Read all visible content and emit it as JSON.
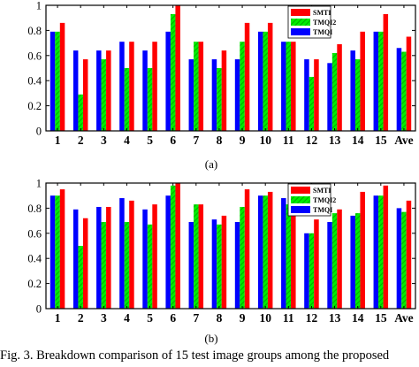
{
  "colors": {
    "series": [
      "#ff0000",
      "#00ee00",
      "#0000ff"
    ],
    "hatch": "#009900",
    "axis": "#000000"
  },
  "caption": "Fig. 3.   Breakdown comparison of 15 test image groups among the proposed",
  "chart_data": [
    {
      "type": "bar",
      "panel_label": "(a)",
      "categories": [
        "1",
        "2",
        "3",
        "4",
        "5",
        "6",
        "7",
        "8",
        "9",
        "10",
        "11",
        "12",
        "13",
        "14",
        "15",
        "Ave"
      ],
      "ylim": [
        0,
        1
      ],
      "yticks": [
        0,
        0.2,
        0.4,
        0.6,
        0.8,
        1
      ],
      "ytick_labels": [
        "0",
        "0.2",
        "0.4",
        "0.6",
        "0.8",
        "1"
      ],
      "grid": false,
      "legend_position": "top-right",
      "bar_order": [
        "TMQI",
        "TMQI2",
        "SMTI"
      ],
      "series": [
        {
          "name": "SMTI",
          "values": [
            0.86,
            0.57,
            0.64,
            0.71,
            0.71,
            1.0,
            0.71,
            0.64,
            0.86,
            0.86,
            0.71,
            0.57,
            0.69,
            0.79,
            0.93,
            0.75
          ]
        },
        {
          "name": "TMQI2",
          "values": [
            0.79,
            0.29,
            0.57,
            0.5,
            0.5,
            0.93,
            0.71,
            0.5,
            0.71,
            0.79,
            0.71,
            0.43,
            0.62,
            0.57,
            0.79,
            0.63
          ]
        },
        {
          "name": "TMQI",
          "values": [
            0.79,
            0.64,
            0.64,
            0.71,
            0.64,
            0.79,
            0.57,
            0.57,
            0.57,
            0.79,
            0.71,
            0.57,
            0.54,
            0.64,
            0.79,
            0.66
          ]
        }
      ]
    },
    {
      "type": "bar",
      "panel_label": "(b)",
      "categories": [
        "1",
        "2",
        "3",
        "4",
        "5",
        "6",
        "7",
        "8",
        "9",
        "10",
        "11",
        "12",
        "13",
        "14",
        "15",
        "Ave"
      ],
      "ylim": [
        0,
        1
      ],
      "yticks": [
        0,
        0.2,
        0.4,
        0.6,
        0.8,
        1
      ],
      "ytick_labels": [
        "0",
        "0.2",
        "0.4",
        "0.6",
        "0.8",
        "1"
      ],
      "grid": false,
      "legend_position": "top-right",
      "bar_order": [
        "TMQI",
        "TMQI2",
        "SMTI"
      ],
      "series": [
        {
          "name": "SMTI",
          "values": [
            0.95,
            0.72,
            0.81,
            0.86,
            0.83,
            1.0,
            0.83,
            0.74,
            0.95,
            0.93,
            0.86,
            0.71,
            0.79,
            0.93,
            0.98,
            0.86
          ]
        },
        {
          "name": "TMQI2",
          "values": [
            0.9,
            0.5,
            0.69,
            0.69,
            0.67,
            0.98,
            0.83,
            0.67,
            0.81,
            0.9,
            0.83,
            0.6,
            0.76,
            0.76,
            0.9,
            0.77
          ]
        },
        {
          "name": "TMQI",
          "values": [
            0.9,
            0.79,
            0.81,
            0.88,
            0.79,
            0.9,
            0.69,
            0.71,
            0.69,
            0.9,
            0.88,
            0.6,
            0.69,
            0.74,
            0.9,
            0.8
          ]
        }
      ]
    }
  ]
}
